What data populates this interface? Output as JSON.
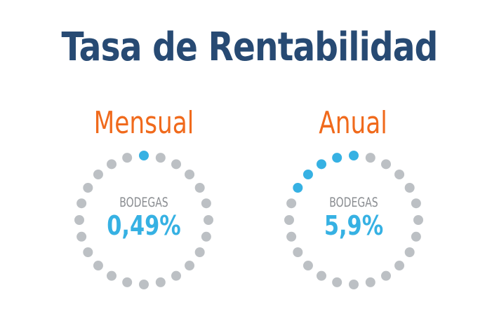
{
  "title": "Tasa de Rentabilidad",
  "colors": {
    "title": "#274a73",
    "period": "#f06a1c",
    "dot_active": "#36b1e3",
    "dot_inactive": "#bcc0c4",
    "label": "#8a8d91",
    "value": "#36b1e3"
  },
  "panels": [
    {
      "period": "Mensual",
      "label": "BODEGAS",
      "value": "0,49%",
      "dots_total": 24,
      "dots_filled": 1
    },
    {
      "period": "Anual",
      "label": "BODEGAS",
      "value": "5,9%",
      "dots_total": 24,
      "dots_filled": 5
    }
  ]
}
